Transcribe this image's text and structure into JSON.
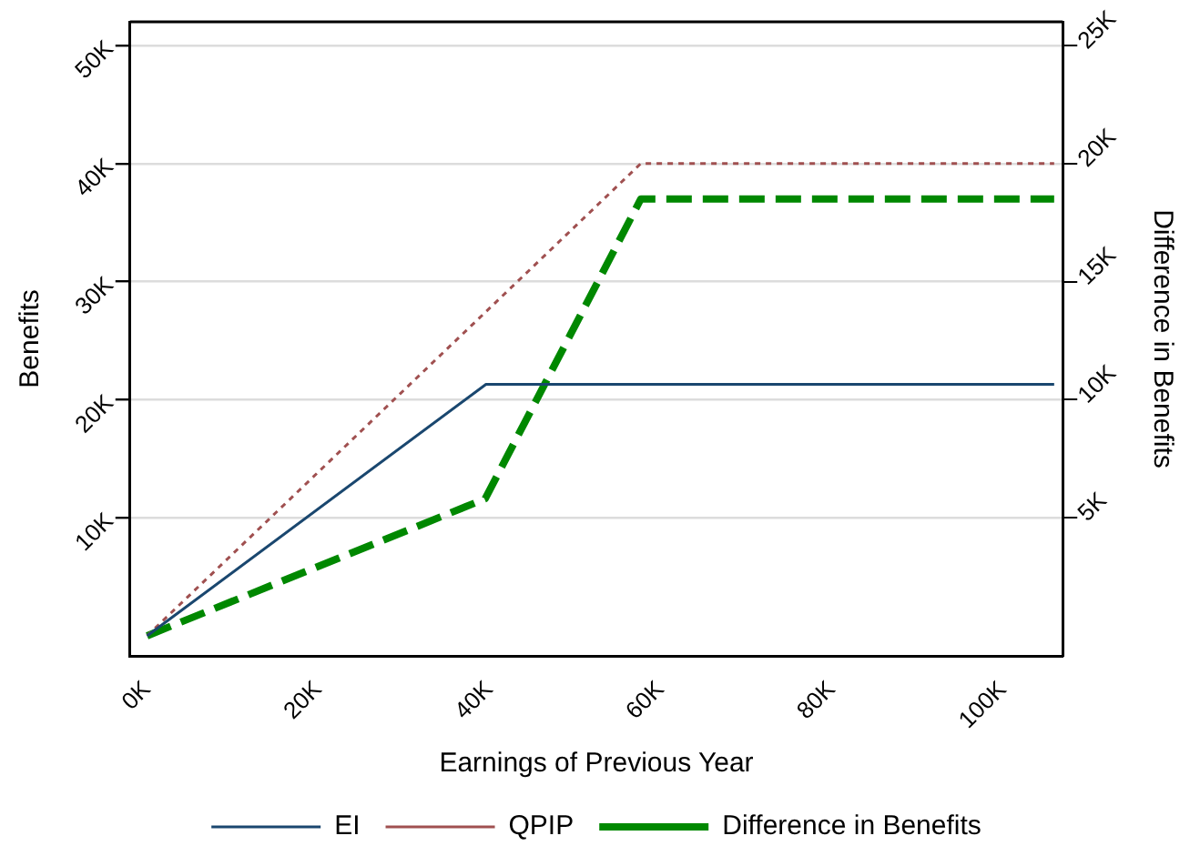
{
  "chart_data": {
    "type": "line",
    "xlabel": "Earnings of Previous Year",
    "ylabel": "Benefits",
    "y2label": "Difference in Benefits",
    "xlim": [
      -2000,
      107000
    ],
    "xticks": [
      {
        "value": 0,
        "label": "0K"
      },
      {
        "value": 20000,
        "label": "20K"
      },
      {
        "value": 40000,
        "label": "40K"
      },
      {
        "value": 60000,
        "label": "60K"
      },
      {
        "value": 80000,
        "label": "80K"
      },
      {
        "value": 100000,
        "label": "100K"
      }
    ],
    "ylim": [
      -1700,
      52000
    ],
    "yticks": [
      {
        "value": 10000,
        "label": "10K"
      },
      {
        "value": 20000,
        "label": "20K"
      },
      {
        "value": 30000,
        "label": "30K"
      },
      {
        "value": 40000,
        "label": "40K"
      },
      {
        "value": 50000,
        "label": "50K"
      }
    ],
    "y2lim": [
      -850,
      26000
    ],
    "y2ticks": [
      {
        "value": 5000,
        "label": "5K"
      },
      {
        "value": 10000,
        "label": "10K"
      },
      {
        "value": 15000,
        "label": "15K"
      },
      {
        "value": 20000,
        "label": "20K"
      },
      {
        "value": 25000,
        "label": "25K"
      }
    ],
    "grid": "y",
    "legend": "bottom",
    "marker": "none",
    "series": [
      {
        "name": "EI",
        "color": "#1a476f",
        "line_style": "solid",
        "x": [
          0,
          39600,
          106000
        ],
        "values": [
          0,
          21300,
          21300
        ]
      },
      {
        "name": "QPIP",
        "color": "#a05050",
        "line_style": "dotted",
        "x": [
          0,
          57700,
          106000
        ],
        "values": [
          0,
          40000,
          40000
        ]
      },
      {
        "name": "Difference in Benefits",
        "color": "#008800",
        "line_style": "dashed",
        "axis": "y2",
        "x": [
          0,
          39500,
          57700,
          106000
        ],
        "values": [
          0,
          5800,
          18500,
          18500
        ]
      }
    ]
  }
}
